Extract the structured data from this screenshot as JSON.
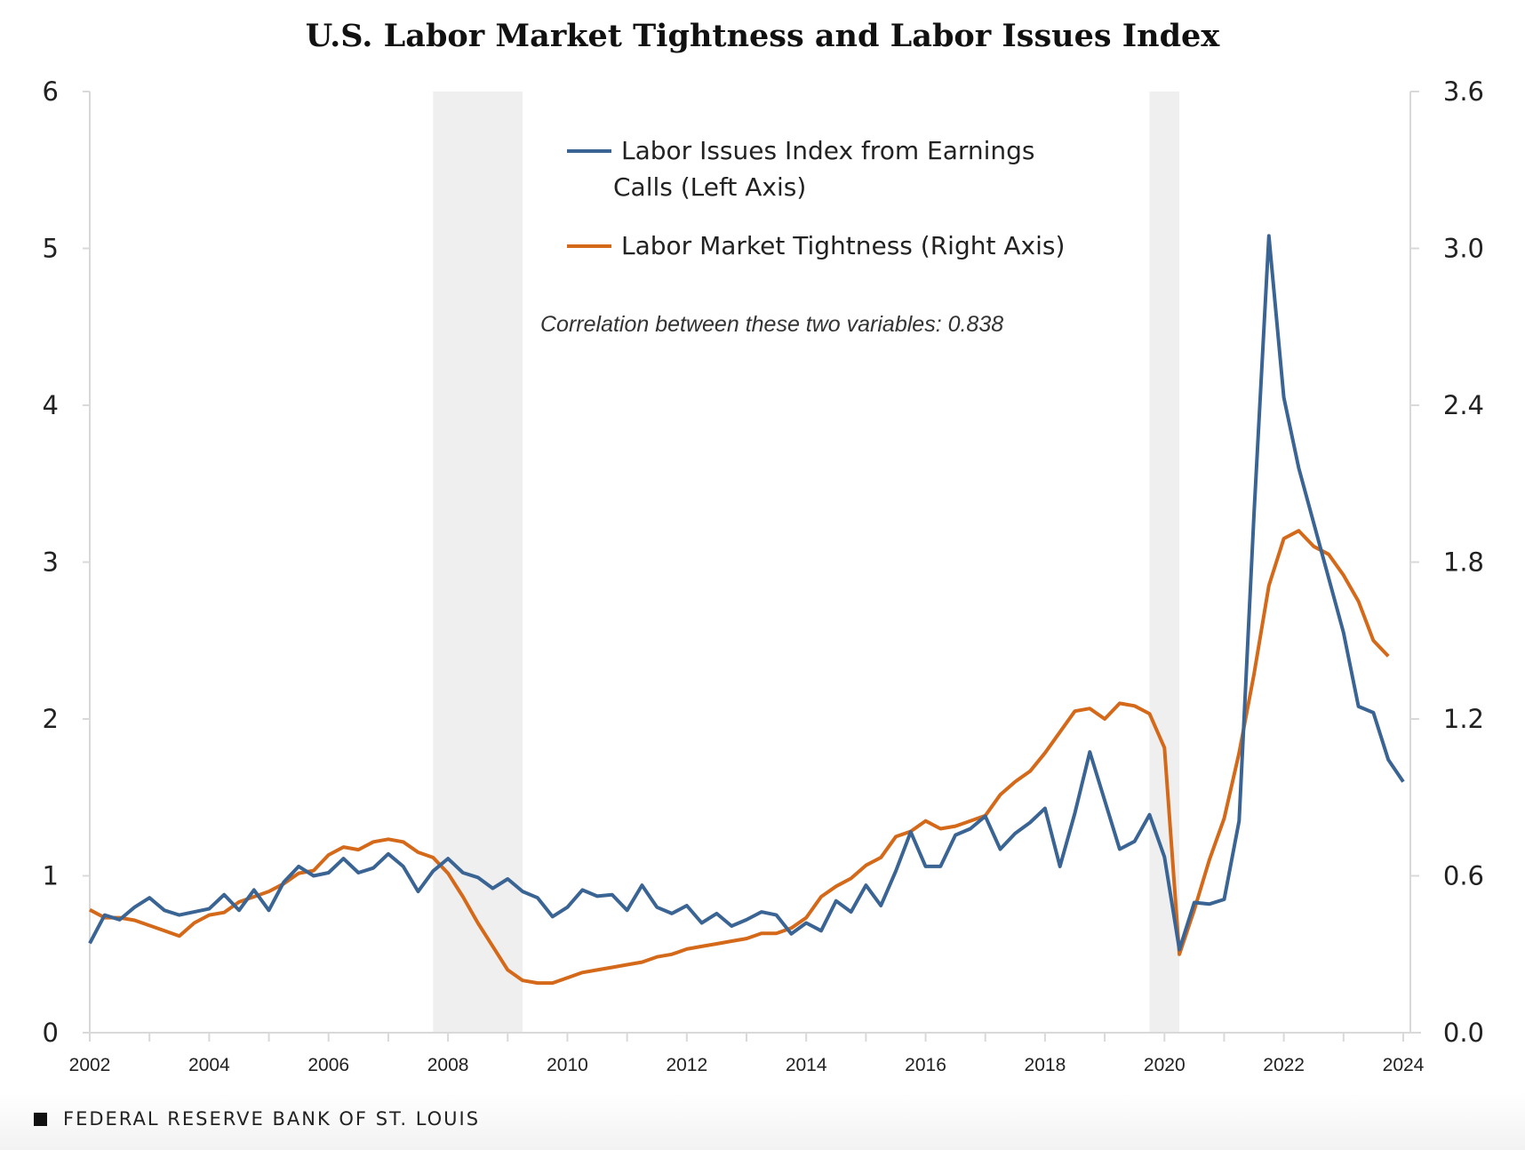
{
  "chart_data": {
    "type": "line",
    "title": "U.S. Labor Market Tightness and Labor Issues Index",
    "annotation": "Correlation between these two variables: 0.838",
    "xlim": [
      2002,
      2024
    ],
    "x_ticks": [
      "2002",
      "2004",
      "2006",
      "2008",
      "2010",
      "2012",
      "2014",
      "2016",
      "2018",
      "2020",
      "2022",
      "2024"
    ],
    "y_left": {
      "lim": [
        0,
        6
      ],
      "ticks": [
        "0",
        "1",
        "2",
        "3",
        "4",
        "5",
        "6"
      ]
    },
    "y_right": {
      "lim": [
        0,
        3.6
      ],
      "ticks": [
        "0.0",
        "0.6",
        "1.2",
        "1.8",
        "2.4",
        "3.0",
        "3.6"
      ]
    },
    "grid": false,
    "legend_placement": "top-center",
    "recessions": [
      [
        2007.75,
        2009.25
      ],
      [
        2019.75,
        2020.25
      ]
    ],
    "series": [
      {
        "name": "Labor Issues Index from Earnings Calls (Left Axis)",
        "legend_lines": [
          "Labor Issues Index from Earnings",
          "Calls (Left Axis)"
        ],
        "axis": "left",
        "color": "#3a6493",
        "x_start": 2002,
        "x_step": 0.25,
        "values": [
          0.57,
          0.75,
          0.72,
          0.8,
          0.86,
          0.78,
          0.75,
          0.77,
          0.79,
          0.88,
          0.78,
          0.91,
          0.78,
          0.96,
          1.06,
          1.0,
          1.02,
          1.11,
          1.02,
          1.05,
          1.14,
          1.06,
          0.9,
          1.03,
          1.11,
          1.02,
          0.99,
          0.92,
          0.98,
          0.9,
          0.86,
          0.74,
          0.8,
          0.91,
          0.87,
          0.88,
          0.78,
          0.94,
          0.8,
          0.76,
          0.81,
          0.7,
          0.76,
          0.68,
          0.72,
          0.77,
          0.75,
          0.63,
          0.7,
          0.65,
          0.84,
          0.77,
          0.94,
          0.81,
          1.03,
          1.28,
          1.06,
          1.06,
          1.26,
          1.3,
          1.38,
          1.17,
          1.27,
          1.34,
          1.43,
          1.06,
          1.4,
          1.79,
          1.48,
          1.17,
          1.22,
          1.39,
          1.12,
          0.53,
          0.83,
          0.82,
          0.85,
          1.35,
          3.3,
          5.08,
          4.05,
          3.6,
          3.25,
          2.9,
          2.55,
          2.08,
          2.04,
          1.74,
          1.6
        ]
      },
      {
        "name": "Labor Market Tightness (Right Axis)",
        "legend_lines": [
          "Labor Market Tightness (Right Axis)"
        ],
        "axis": "right",
        "color": "#d4691a",
        "x_start": 2002,
        "x_step": 0.25,
        "values": [
          0.47,
          0.44,
          0.44,
          0.43,
          0.41,
          0.39,
          0.37,
          0.42,
          0.45,
          0.46,
          0.5,
          0.52,
          0.54,
          0.57,
          0.61,
          0.62,
          0.68,
          0.71,
          0.7,
          0.73,
          0.74,
          0.73,
          0.69,
          0.67,
          0.61,
          0.52,
          0.42,
          0.33,
          0.24,
          0.2,
          0.19,
          0.19,
          0.21,
          0.23,
          0.24,
          0.25,
          0.26,
          0.27,
          0.29,
          0.3,
          0.32,
          0.33,
          0.34,
          0.35,
          0.36,
          0.38,
          0.38,
          0.4,
          0.44,
          0.52,
          0.56,
          0.59,
          0.64,
          0.67,
          0.75,
          0.77,
          0.81,
          0.78,
          0.79,
          0.81,
          0.83,
          0.91,
          0.96,
          1.0,
          1.07,
          1.15,
          1.23,
          1.24,
          1.2,
          1.26,
          1.25,
          1.22,
          1.09,
          0.3,
          0.47,
          0.66,
          0.82,
          1.07,
          1.37,
          1.71,
          1.89,
          1.92,
          1.86,
          1.83,
          1.75,
          1.65,
          1.5,
          1.44
        ]
      }
    ]
  },
  "footer": {
    "source": "FEDERAL RESERVE BANK OF ST. LOUIS"
  }
}
